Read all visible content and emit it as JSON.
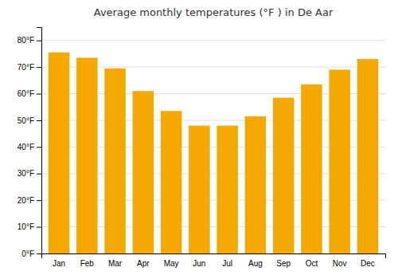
{
  "chart_data": {
    "type": "bar",
    "title": "Average monthly temperatures (°F ) in De Aar",
    "categories": [
      "Jan",
      "Feb",
      "Mar",
      "Apr",
      "May",
      "Jun",
      "Jul",
      "Aug",
      "Sep",
      "Oct",
      "Nov",
      "Dec"
    ],
    "values": [
      75.5,
      73.5,
      69.5,
      61.0,
      53.5,
      48.0,
      48.0,
      51.5,
      58.5,
      63.5,
      69.0,
      73.0
    ],
    "color": "#F5A800",
    "ylim": [
      0,
      85
    ],
    "yticks": [
      {
        "value": 0,
        "label": "0°F"
      },
      {
        "value": 10,
        "label": "10°F"
      },
      {
        "value": 20,
        "label": "20°F"
      },
      {
        "value": 30,
        "label": "30°F"
      },
      {
        "value": 40,
        "label": "40°F"
      },
      {
        "value": 50,
        "label": "50°F"
      },
      {
        "value": 60,
        "label": "60°F"
      },
      {
        "value": 70,
        "label": "70°F"
      },
      {
        "value": 80,
        "label": "80°F"
      }
    ],
    "grid": true
  }
}
